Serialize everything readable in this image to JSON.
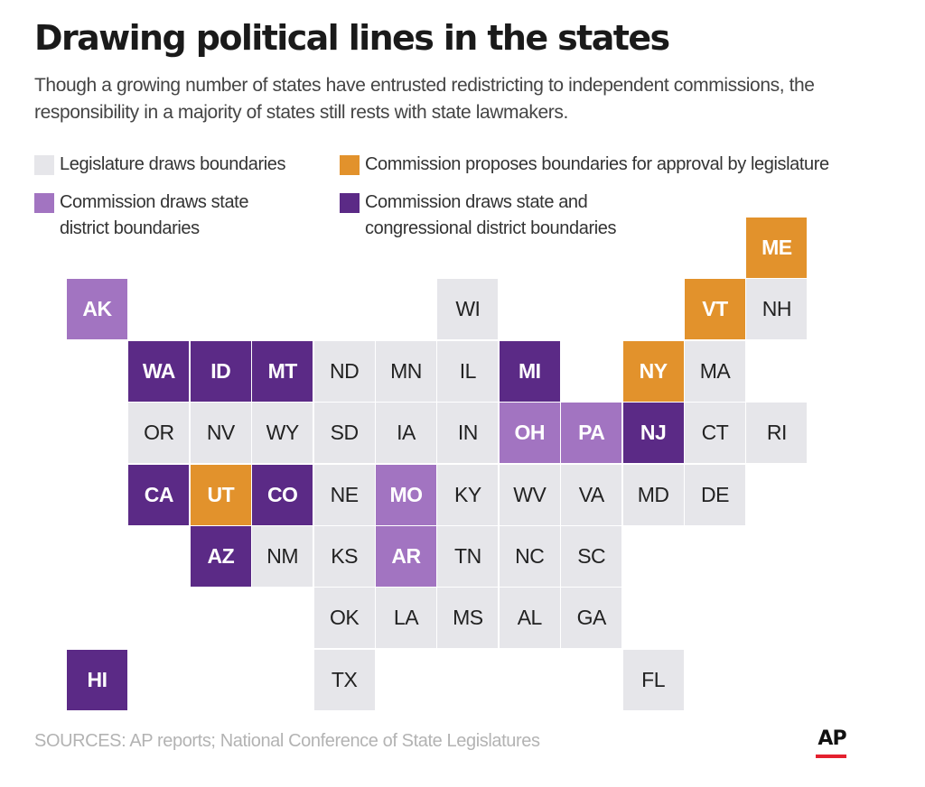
{
  "title": "Drawing political lines in the states",
  "subtitle": "Though a growing number of states have entrusted redistricting to independent commissions, the responsibility in a majority of states still rests with state lawmakers.",
  "legend": [
    {
      "key": "legislature",
      "label": "Legislature draws boundaries",
      "color": "#e6e6ea"
    },
    {
      "key": "proposes",
      "label": "Commission proposes boundaries for approval by legislature",
      "color": "#e2922c"
    },
    {
      "key": "state",
      "label": "Commission draws state district boundaries",
      "color": "#a274c1"
    },
    {
      "key": "both",
      "label": "Commission draws state and congressional district boundaries",
      "color": "#5b2a86"
    }
  ],
  "map_data": {
    "type": "tile-grid",
    "tiles": [
      {
        "state": "ME",
        "row": 0,
        "col": 11,
        "category": "proposes"
      },
      {
        "state": "AK",
        "row": 1,
        "col": 0,
        "category": "state"
      },
      {
        "state": "WI",
        "row": 1,
        "col": 6,
        "category": "legislature"
      },
      {
        "state": "VT",
        "row": 1,
        "col": 10,
        "category": "proposes"
      },
      {
        "state": "NH",
        "row": 1,
        "col": 11,
        "category": "legislature"
      },
      {
        "state": "WA",
        "row": 2,
        "col": 1,
        "category": "both"
      },
      {
        "state": "ID",
        "row": 2,
        "col": 2,
        "category": "both"
      },
      {
        "state": "MT",
        "row": 2,
        "col": 3,
        "category": "both"
      },
      {
        "state": "ND",
        "row": 2,
        "col": 4,
        "category": "legislature"
      },
      {
        "state": "MN",
        "row": 2,
        "col": 5,
        "category": "legislature"
      },
      {
        "state": "IL",
        "row": 2,
        "col": 6,
        "category": "legislature"
      },
      {
        "state": "MI",
        "row": 2,
        "col": 7,
        "category": "both"
      },
      {
        "state": "NY",
        "row": 2,
        "col": 9,
        "category": "proposes"
      },
      {
        "state": "MA",
        "row": 2,
        "col": 10,
        "category": "legislature"
      },
      {
        "state": "OR",
        "row": 3,
        "col": 1,
        "category": "legislature"
      },
      {
        "state": "NV",
        "row": 3,
        "col": 2,
        "category": "legislature"
      },
      {
        "state": "WY",
        "row": 3,
        "col": 3,
        "category": "legislature"
      },
      {
        "state": "SD",
        "row": 3,
        "col": 4,
        "category": "legislature"
      },
      {
        "state": "IA",
        "row": 3,
        "col": 5,
        "category": "legislature"
      },
      {
        "state": "IN",
        "row": 3,
        "col": 6,
        "category": "legislature"
      },
      {
        "state": "OH",
        "row": 3,
        "col": 7,
        "category": "state"
      },
      {
        "state": "PA",
        "row": 3,
        "col": 8,
        "category": "state"
      },
      {
        "state": "NJ",
        "row": 3,
        "col": 9,
        "category": "both"
      },
      {
        "state": "CT",
        "row": 3,
        "col": 10,
        "category": "legislature"
      },
      {
        "state": "RI",
        "row": 3,
        "col": 11,
        "category": "legislature"
      },
      {
        "state": "CA",
        "row": 4,
        "col": 1,
        "category": "both"
      },
      {
        "state": "UT",
        "row": 4,
        "col": 2,
        "category": "proposes"
      },
      {
        "state": "CO",
        "row": 4,
        "col": 3,
        "category": "both"
      },
      {
        "state": "NE",
        "row": 4,
        "col": 4,
        "category": "legislature"
      },
      {
        "state": "MO",
        "row": 4,
        "col": 5,
        "category": "state"
      },
      {
        "state": "KY",
        "row": 4,
        "col": 6,
        "category": "legislature"
      },
      {
        "state": "WV",
        "row": 4,
        "col": 7,
        "category": "legislature"
      },
      {
        "state": "VA",
        "row": 4,
        "col": 8,
        "category": "legislature"
      },
      {
        "state": "MD",
        "row": 4,
        "col": 9,
        "category": "legislature"
      },
      {
        "state": "DE",
        "row": 4,
        "col": 10,
        "category": "legislature"
      },
      {
        "state": "AZ",
        "row": 5,
        "col": 2,
        "category": "both"
      },
      {
        "state": "NM",
        "row": 5,
        "col": 3,
        "category": "legislature"
      },
      {
        "state": "KS",
        "row": 5,
        "col": 4,
        "category": "legislature"
      },
      {
        "state": "AR",
        "row": 5,
        "col": 5,
        "category": "state"
      },
      {
        "state": "TN",
        "row": 5,
        "col": 6,
        "category": "legislature"
      },
      {
        "state": "NC",
        "row": 5,
        "col": 7,
        "category": "legislature"
      },
      {
        "state": "SC",
        "row": 5,
        "col": 8,
        "category": "legislature"
      },
      {
        "state": "OK",
        "row": 6,
        "col": 4,
        "category": "legislature"
      },
      {
        "state": "LA",
        "row": 6,
        "col": 5,
        "category": "legislature"
      },
      {
        "state": "MS",
        "row": 6,
        "col": 6,
        "category": "legislature"
      },
      {
        "state": "AL",
        "row": 6,
        "col": 7,
        "category": "legislature"
      },
      {
        "state": "GA",
        "row": 6,
        "col": 8,
        "category": "legislature"
      },
      {
        "state": "HI",
        "row": 7,
        "col": 0,
        "category": "both"
      },
      {
        "state": "TX",
        "row": 7,
        "col": 4,
        "category": "legislature"
      },
      {
        "state": "FL",
        "row": 7,
        "col": 9,
        "category": "legislature"
      }
    ]
  },
  "source": "SOURCES: AP reports; National Conference of State Legislatures",
  "logo": {
    "text": "AP",
    "accent": "#e4202e"
  }
}
